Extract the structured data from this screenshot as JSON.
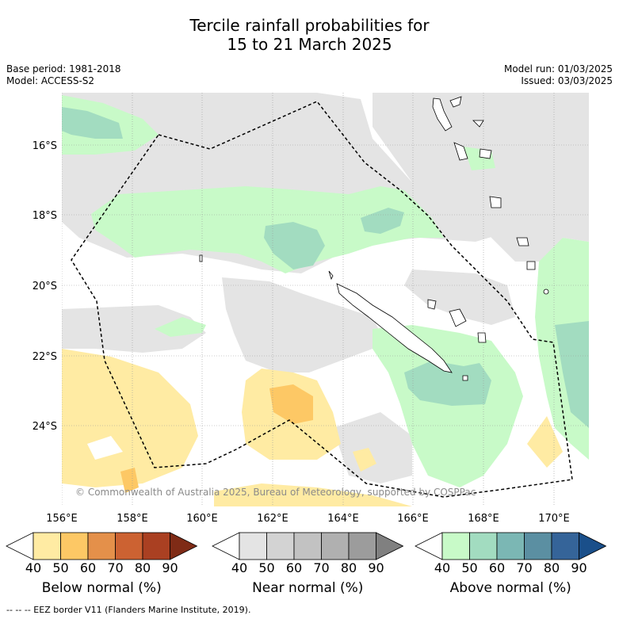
{
  "title_line1": "Tercile rainfall probabilities for",
  "title_line2": "15 to 21 March 2025",
  "base_period": "Base period: 1981-2018",
  "model": "Model: ACCESS-S2",
  "model_run": "Model run: 01/03/2025",
  "issued": "Issued: 03/03/2025",
  "copyright": "© Commonwealth of Australia 2025, Bureau of Meteorology, supported by COSPPac",
  "eez_note": "-- -- -- EEZ border V11 (Flanders Marine Institute, 2019).",
  "lat_labels": [
    "16°S",
    "18°S",
    "20°S",
    "22°S",
    "24°S"
  ],
  "lon_labels": [
    "156°E",
    "158°E",
    "160°E",
    "162°E",
    "164°E",
    "166°E",
    "168°E",
    "170°E"
  ],
  "colorbars": [
    {
      "name": "below",
      "title": "Below normal (%)",
      "ticks": [
        "40",
        "50",
        "60",
        "70",
        "80",
        "90"
      ],
      "colors": [
        "#ffffff",
        "#ffeba3",
        "#fdc865",
        "#e4904a",
        "#cc6232",
        "#aa4022",
        "#7f2b16"
      ]
    },
    {
      "name": "near",
      "title": "Near normal (%)",
      "ticks": [
        "40",
        "50",
        "60",
        "70",
        "80",
        "90"
      ],
      "colors": [
        "#ffffff",
        "#e4e4e4",
        "#d3d3d3",
        "#c2c2c2",
        "#b0b0b0",
        "#9c9c9c",
        "#808080"
      ]
    },
    {
      "name": "above",
      "title": "Above normal (%)",
      "ticks": [
        "40",
        "50",
        "60",
        "70",
        "80",
        "90"
      ],
      "colors": [
        "#ffffff",
        "#c8fac8",
        "#a2dcc0",
        "#7bb7b4",
        "#5b8fa2",
        "#356499",
        "#1a4f8a"
      ]
    }
  ]
}
